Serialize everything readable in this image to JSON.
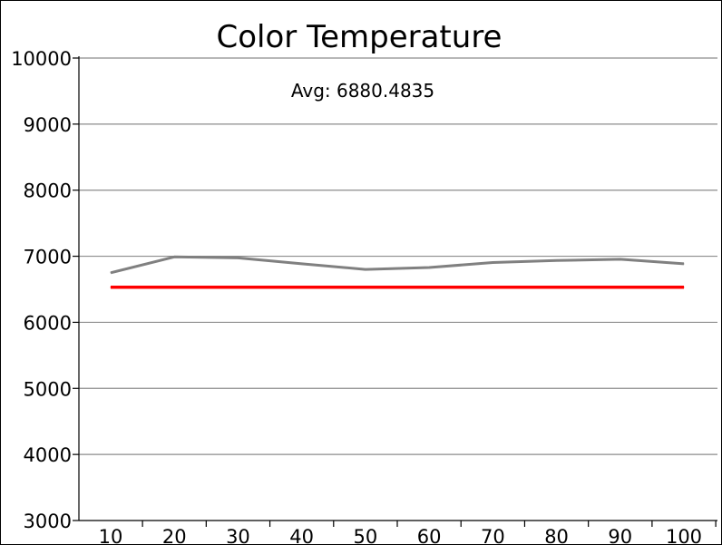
{
  "chart_data": {
    "type": "line",
    "title": "Color Temperature",
    "annotation": "Avg: 6880.4835",
    "xlabel": "",
    "ylabel": "",
    "categories": [
      "10",
      "20",
      "30",
      "40",
      "50",
      "60",
      "70",
      "80",
      "90",
      "100"
    ],
    "ylim": [
      3000,
      10000
    ],
    "yticks": [
      "3000",
      "4000",
      "5000",
      "6000",
      "7000",
      "8000",
      "9000",
      "10000"
    ],
    "grid": true,
    "series": [
      {
        "values": [
          6750,
          6990,
          6975,
          6885,
          6800,
          6830,
          6905,
          6935,
          6955,
          6885
        ],
        "color": "#808080"
      },
      {
        "values": [
          6530,
          6530,
          6530,
          6530,
          6530,
          6530,
          6530,
          6530,
          6530,
          6530
        ],
        "color": "#ff0000"
      }
    ]
  }
}
